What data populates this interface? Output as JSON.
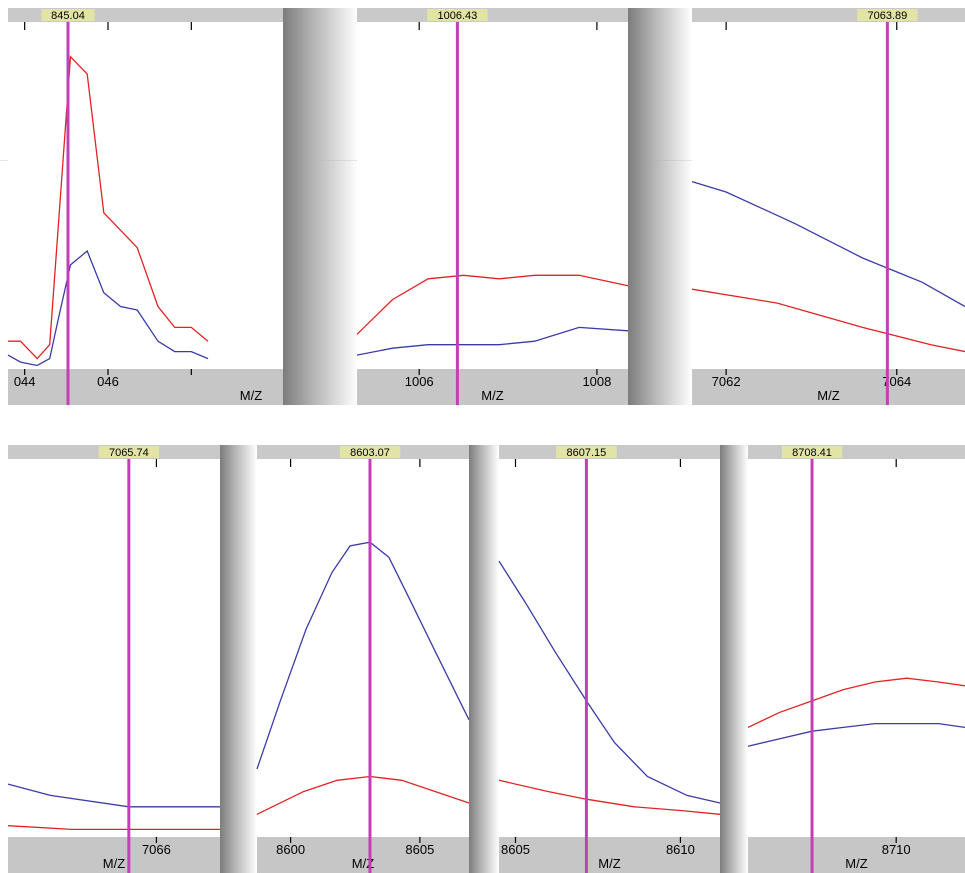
{
  "colors": {
    "header": "#c9c9c9",
    "axis": "#c6c6c6",
    "label_bg": "#e2e4a6",
    "marker": "#c23fb8",
    "red": "#e02424",
    "blue": "#3b3ba8"
  },
  "chart_data": [
    {
      "type": "line",
      "marker_label": "845.04",
      "marker_x": 845.04,
      "xlim": [
        843.6,
        850.2
      ],
      "ylim": [
        0,
        100
      ],
      "ticks": [
        {
          "x": 844,
          "label": "044"
        },
        {
          "x": 846,
          "label": "046"
        },
        {
          "x": 848,
          "label": ""
        }
      ],
      "xlabel": "M/Z",
      "series": [
        {
          "color": "red",
          "x": [
            843.6,
            843.9,
            844.3,
            844.6,
            844.8,
            845.1,
            845.5,
            845.9,
            846.3,
            846.7,
            847.2,
            847.6,
            848.0,
            848.4
          ],
          "y": [
            8,
            8,
            3,
            7,
            40,
            90,
            85,
            45,
            40,
            35,
            18,
            12,
            12,
            8
          ]
        },
        {
          "color": "blue",
          "x": [
            843.6,
            843.9,
            844.3,
            844.6,
            844.8,
            845.1,
            845.5,
            845.9,
            846.3,
            846.7,
            847.2,
            847.6,
            848.0,
            848.4
          ],
          "y": [
            4,
            2,
            1,
            3,
            14,
            30,
            34,
            22,
            18,
            17,
            8,
            5,
            5,
            3
          ]
        }
      ]
    },
    {
      "type": "line",
      "marker_label": "1006.43",
      "marker_x": 1006.43,
      "xlim": [
        1005.3,
        1008.35
      ],
      "ylim": [
        0,
        100
      ],
      "ticks": [
        {
          "x": 1006,
          "label": "1006"
        },
        {
          "x": 1008,
          "label": "1008"
        }
      ],
      "xlabel": "M/Z",
      "series": [
        {
          "color": "red",
          "x": [
            1005.3,
            1005.7,
            1006.1,
            1006.5,
            1006.9,
            1007.3,
            1007.8,
            1008.35
          ],
          "y": [
            10,
            20,
            26,
            27,
            26,
            27,
            27,
            24
          ]
        },
        {
          "color": "blue",
          "x": [
            1005.3,
            1005.7,
            1006.1,
            1006.5,
            1006.9,
            1007.3,
            1007.8,
            1008.35
          ],
          "y": [
            4,
            6,
            7,
            7,
            7,
            8,
            12,
            11
          ]
        }
      ]
    },
    {
      "type": "line",
      "marker_label": "7063.89",
      "marker_x": 7063.89,
      "xlim": [
        7061.6,
        7064.8
      ],
      "ylim": [
        0,
        100
      ],
      "ticks": [
        {
          "x": 7062,
          "label": "7062"
        },
        {
          "x": 7064,
          "label": "7064"
        }
      ],
      "xlabel": "M/Z",
      "series": [
        {
          "color": "red",
          "x": [
            7061.6,
            7062.6,
            7063.6,
            7064.4,
            7064.8
          ],
          "y": [
            23,
            19,
            12,
            7,
            5
          ]
        },
        {
          "color": "blue",
          "x": [
            7061.6,
            7062.0,
            7062.8,
            7063.6,
            7064.3,
            7064.8
          ],
          "y": [
            54,
            51,
            42,
            32,
            25,
            18
          ]
        }
      ]
    },
    {
      "type": "line",
      "marker_label": "7065.74",
      "marker_x": 7065.74,
      "xlim": [
        7064.6,
        7066.6
      ],
      "ylim": [
        0,
        100
      ],
      "ticks": [
        {
          "x": 7066,
          "label": "7066"
        }
      ],
      "xlabel": "M/Z",
      "series": [
        {
          "color": "red",
          "x": [
            7064.6,
            7065.2,
            7065.74,
            7066.2,
            7066.6
          ],
          "y": [
            3,
            2,
            2,
            2,
            2
          ]
        },
        {
          "color": "blue",
          "x": [
            7064.6,
            7065.0,
            7065.74,
            7066.2,
            7066.6
          ],
          "y": [
            14,
            11,
            8,
            8,
            8
          ]
        }
      ]
    },
    {
      "type": "line",
      "marker_label": "8603.07",
      "marker_x": 8603.07,
      "xlim": [
        8598.7,
        8606.9
      ],
      "ylim": [
        0,
        100
      ],
      "ticks": [
        {
          "x": 8600,
          "label": "8600"
        },
        {
          "x": 8605,
          "label": "8605"
        }
      ],
      "xlabel": "M/Z",
      "series": [
        {
          "color": "red",
          "x": [
            8598.7,
            8600.5,
            8601.8,
            8603.07,
            8604.3,
            8605.6,
            8606.9
          ],
          "y": [
            6,
            12,
            15,
            16,
            15,
            12,
            9
          ]
        },
        {
          "color": "blue",
          "x": [
            8598.7,
            8599.6,
            8600.6,
            8601.6,
            8602.3,
            8603.07,
            8603.8,
            8604.6,
            8605.6,
            8606.9
          ],
          "y": [
            18,
            36,
            55,
            70,
            77,
            78,
            74,
            63,
            49,
            31
          ]
        }
      ]
    },
    {
      "type": "line",
      "marker_label": "8607.15",
      "marker_x": 8607.15,
      "xlim": [
        8604.5,
        8611.2
      ],
      "ylim": [
        0,
        100
      ],
      "ticks": [
        {
          "x": 8605,
          "label": "8605"
        },
        {
          "x": 8610,
          "label": "8610"
        }
      ],
      "xlabel": "M/Z",
      "series": [
        {
          "color": "red",
          "x": [
            8604.5,
            8606.0,
            8607.15,
            8608.6,
            8610.0,
            8611.2
          ],
          "y": [
            15,
            12,
            10,
            8,
            7,
            6
          ]
        },
        {
          "color": "blue",
          "x": [
            8604.5,
            8605.3,
            8606.2,
            8607.15,
            8608.0,
            8609.0,
            8610.2,
            8611.2
          ],
          "y": [
            73,
            62,
            49,
            36,
            25,
            16,
            11,
            9
          ]
        }
      ]
    },
    {
      "type": "line",
      "marker_label": "8708.41",
      "marker_x": 8708.41,
      "xlim": [
        8707.2,
        8711.3
      ],
      "ylim": [
        0,
        100
      ],
      "ticks": [
        {
          "x": 8710,
          "label": "8710"
        }
      ],
      "xlabel": "M/Z",
      "series": [
        {
          "color": "red",
          "x": [
            8707.2,
            8707.8,
            8708.41,
            8709.0,
            8709.6,
            8710.2,
            8710.8,
            8711.3
          ],
          "y": [
            29,
            33,
            36,
            39,
            41,
            42,
            41,
            40
          ]
        },
        {
          "color": "blue",
          "x": [
            8707.2,
            8707.8,
            8708.41,
            8709.0,
            8709.6,
            8710.2,
            8710.8,
            8711.3
          ],
          "y": [
            24,
            26,
            28,
            29,
            30,
            30,
            30,
            29
          ]
        }
      ]
    }
  ]
}
